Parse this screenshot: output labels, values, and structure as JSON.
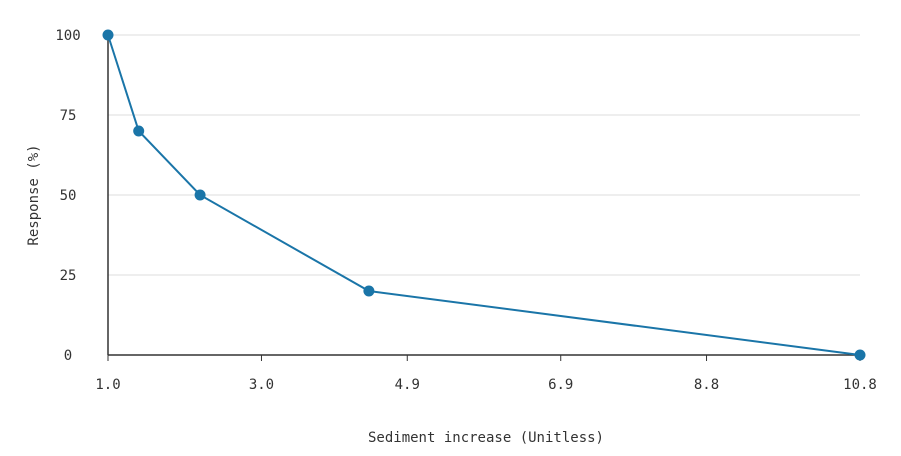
{
  "chart_data": {
    "type": "line",
    "xlabel": "Sediment increase (Unitless)",
    "ylabel": "Response (%)",
    "xlim": [
      1.0,
      10.8
    ],
    "ylim": [
      0,
      100
    ],
    "x_ticks": [
      "1.0",
      "3.0",
      "4.9",
      "6.9",
      "8.8",
      "10.8"
    ],
    "y_ticks": [
      "0",
      "25",
      "50",
      "75",
      "100"
    ],
    "grid": "horizontal",
    "series": [
      {
        "x": [
          1.0,
          1.4,
          2.2,
          4.4,
          10.8
        ],
        "y": [
          100,
          70,
          50,
          20,
          0
        ],
        "color": "#1a75a8"
      }
    ]
  }
}
